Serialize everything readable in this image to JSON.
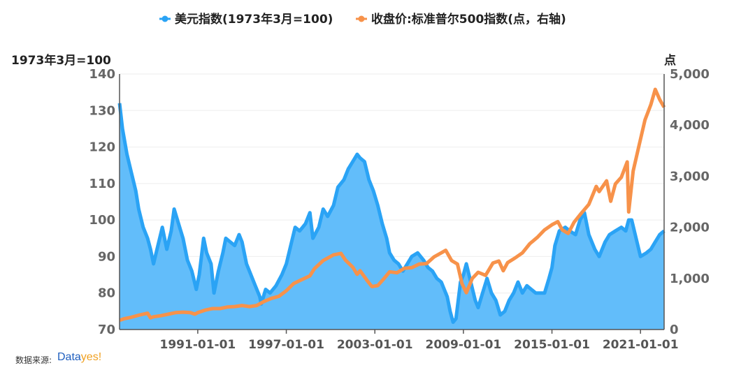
{
  "legend": {
    "series1": "美元指数(1973年3月=100)",
    "series2": "收盘价:标准普尔500指数(点，右轴)"
  },
  "axis": {
    "left_title": "1973年3月=100",
    "right_title": "点"
  },
  "source": {
    "label": "数据来源:",
    "brand_main": "Data",
    "brand_accent": "yes!"
  },
  "colors": {
    "dxy_line": "#2aa3f5",
    "dxy_fill": "#62bdfa",
    "spx_line": "#f7924a",
    "axis": "#555555",
    "grid": "#eeeeee"
  },
  "chart_data": {
    "type": "line",
    "title": "",
    "x_unit": "year",
    "x_range": [
      1985.7,
      2022.6
    ],
    "x_tick_labels": [
      "1991-01-01",
      "1997-01-01",
      "2003-01-01",
      "2009-01-01",
      "2015-01-01",
      "2021-01-01"
    ],
    "x_tick_years": [
      1991,
      1997,
      2003,
      2009,
      2015,
      2021
    ],
    "left_axis": {
      "title": "1973年3月=100",
      "range": [
        70,
        140
      ],
      "ticks": [
        70,
        80,
        90,
        100,
        110,
        120,
        130,
        140
      ]
    },
    "right_axis": {
      "title": "点",
      "range": [
        0,
        5000
      ],
      "ticks": [
        0,
        1000,
        2000,
        3000,
        4000,
        5000
      ],
      "tick_labels": [
        "0",
        "1,000",
        "2,000",
        "3,000",
        "4,000",
        "5,000"
      ]
    },
    "series": [
      {
        "name": "美元指数(1973年3月=100)",
        "axis": "left",
        "style": "area",
        "x": [
          1985.7,
          1985.9,
          1986.2,
          1986.5,
          1986.8,
          1987.0,
          1987.3,
          1987.6,
          1987.8,
          1988.0,
          1988.3,
          1988.6,
          1988.9,
          1989.2,
          1989.4,
          1989.7,
          1990.0,
          1990.3,
          1990.6,
          1990.9,
          1991.1,
          1991.4,
          1991.6,
          1991.9,
          1992.1,
          1992.4,
          1992.7,
          1992.9,
          1993.2,
          1993.5,
          1993.8,
          1994.0,
          1994.3,
          1994.5,
          1994.9,
          1995.2,
          1995.3,
          1995.6,
          1995.9,
          1996.3,
          1996.7,
          1997.0,
          1997.3,
          1997.6,
          1997.9,
          1998.3,
          1998.6,
          1998.8,
          1999.2,
          1999.5,
          1999.8,
          2000.2,
          2000.5,
          2000.9,
          2001.2,
          2001.5,
          2001.8,
          2002.0,
          2002.3,
          2002.6,
          2002.9,
          2003.2,
          2003.5,
          2003.8,
          2004.0,
          2004.3,
          2004.6,
          2004.9,
          2005.2,
          2005.5,
          2005.9,
          2006.3,
          2006.6,
          2006.9,
          2007.2,
          2007.5,
          2007.9,
          2008.1,
          2008.3,
          2008.5,
          2008.8,
          2009.0,
          2009.2,
          2009.5,
          2009.8,
          2010.0,
          2010.3,
          2010.6,
          2010.9,
          2011.2,
          2011.5,
          2011.8,
          2012.1,
          2012.4,
          2012.7,
          2013.0,
          2013.3,
          2013.6,
          2013.9,
          2014.2,
          2014.5,
          2014.8,
          2015.0,
          2015.2,
          2015.5,
          2015.9,
          2016.2,
          2016.6,
          2016.9,
          2017.2,
          2017.5,
          2017.9,
          2018.2,
          2018.6,
          2018.9,
          2019.3,
          2019.7,
          2020.0,
          2020.2,
          2020.4,
          2020.7,
          2021.0,
          2021.4,
          2021.7,
          2022.0,
          2022.3,
          2022.6
        ],
        "values": [
          132,
          125,
          118,
          113,
          108,
          103,
          98,
          95,
          92,
          88,
          93,
          98,
          92,
          97,
          103,
          99,
          95,
          89,
          86,
          81,
          85,
          95,
          91,
          88,
          80,
          86,
          91,
          95,
          94,
          93,
          96,
          94,
          88,
          86,
          82,
          79,
          77,
          81,
          80,
          82,
          85,
          88,
          93,
          98,
          97,
          99,
          102,
          95,
          98,
          103,
          101,
          104,
          109,
          111,
          114,
          116,
          118,
          117,
          116,
          111,
          108,
          104,
          99,
          95,
          91,
          89,
          88,
          86,
          88,
          90,
          91,
          89,
          87,
          86,
          84,
          83,
          79,
          75,
          72,
          73,
          83,
          85,
          88,
          83,
          78,
          76,
          80,
          84,
          80,
          78,
          74,
          75,
          78,
          80,
          83,
          80,
          82,
          81,
          80,
          80,
          80,
          84,
          87,
          93,
          97,
          98,
          97,
          96,
          100,
          102,
          96,
          92,
          90,
          94,
          96,
          97,
          98,
          97,
          100,
          100,
          95,
          90,
          91,
          92,
          94,
          96,
          97
        ]
      },
      {
        "name": "收盘价:标准普尔500指数(点，右轴)",
        "axis": "right",
        "style": "line",
        "x": [
          1985.7,
          1986.0,
          1986.5,
          1987.0,
          1987.6,
          1987.8,
          1988.0,
          1988.5,
          1989.0,
          1989.5,
          1990.0,
          1990.5,
          1990.8,
          1991.0,
          1991.5,
          1992.0,
          1992.5,
          1993.0,
          1993.5,
          1994.0,
          1994.5,
          1995.0,
          1995.5,
          1996.0,
          1996.5,
          1997.0,
          1997.5,
          1998.0,
          1998.6,
          1998.9,
          1999.5,
          2000.2,
          2000.7,
          2001.0,
          2001.5,
          2001.8,
          2002.0,
          2002.5,
          2002.8,
          2003.2,
          2003.6,
          2004.0,
          2004.5,
          2005.0,
          2005.5,
          2006.0,
          2006.5,
          2007.0,
          2007.5,
          2007.8,
          2008.2,
          2008.6,
          2008.9,
          2009.2,
          2009.6,
          2010.0,
          2010.5,
          2011.0,
          2011.4,
          2011.7,
          2012.0,
          2012.5,
          2013.0,
          2013.5,
          2014.0,
          2014.5,
          2015.0,
          2015.4,
          2015.7,
          2016.1,
          2016.5,
          2017.0,
          2017.5,
          2018.0,
          2018.2,
          2018.7,
          2018.98,
          2019.3,
          2019.7,
          2020.1,
          2020.2,
          2020.5,
          2020.9,
          2021.3,
          2021.7,
          2022.0,
          2022.3,
          2022.6
        ],
        "values": [
          180,
          210,
          240,
          280,
          320,
          230,
          250,
          270,
          300,
          330,
          340,
          330,
          300,
          330,
          380,
          410,
          410,
          440,
          450,
          470,
          450,
          470,
          550,
          610,
          650,
          760,
          900,
          970,
          1050,
          1190,
          1350,
          1460,
          1490,
          1360,
          1220,
          1080,
          1150,
          950,
          840,
          860,
          990,
          1130,
          1110,
          1200,
          1210,
          1280,
          1290,
          1420,
          1500,
          1550,
          1350,
          1280,
          900,
          720,
          1000,
          1120,
          1060,
          1300,
          1340,
          1150,
          1310,
          1400,
          1500,
          1680,
          1800,
          1950,
          2050,
          2110,
          1950,
          1880,
          2100,
          2280,
          2450,
          2800,
          2700,
          2910,
          2510,
          2850,
          2980,
          3280,
          2300,
          3100,
          3600,
          4100,
          4400,
          4700,
          4500,
          4350
        ]
      }
    ]
  }
}
